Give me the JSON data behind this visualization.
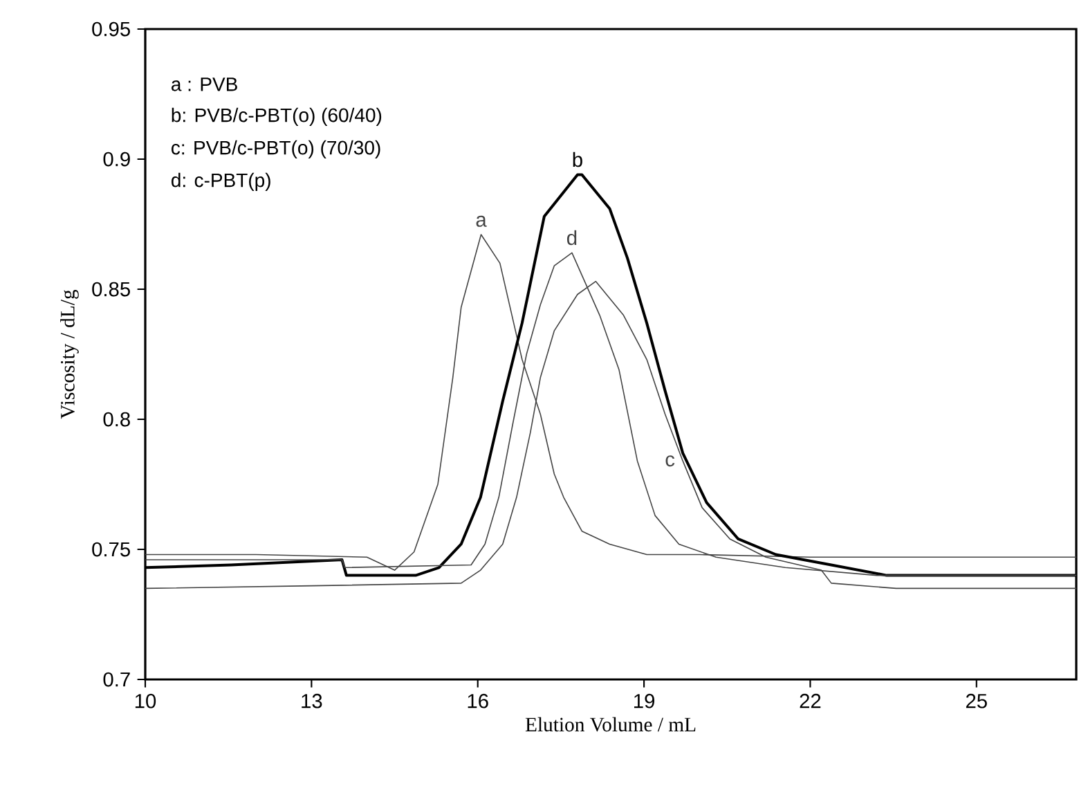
{
  "chart_data": {
    "type": "line",
    "xlabel": "Elution Volume / mL",
    "ylabel": "Viscosity / dL/g",
    "xlim": [
      10,
      26.8
    ],
    "xticks": [
      10,
      13,
      16,
      19,
      22,
      25
    ],
    "ylim": [
      0.7,
      0.95
    ],
    "yticks": [
      0.7,
      0.75,
      0.8,
      0.85,
      0.9,
      0.95
    ],
    "grid": false,
    "marker": "none",
    "line_style": "solid",
    "annotations": [
      "a : PVB",
      "b:  PVB/c-PBT(o) (60/40)",
      "c:  PVB/c-PBT(o) (70/30)",
      "d:  c-PBT(p)"
    ],
    "series": [
      {
        "name": "a",
        "color": "#444444",
        "x": [
          10,
          12,
          14,
          14.5,
          14.85,
          15.28,
          15.55,
          15.7,
          16.06,
          16.4,
          16.8,
          17.13,
          17.38,
          17.55,
          17.88,
          18.38,
          19.05,
          20,
          22,
          24,
          26.8
        ],
        "values": [
          0.748,
          0.748,
          0.747,
          0.742,
          0.749,
          0.775,
          0.816,
          0.843,
          0.871,
          0.86,
          0.823,
          0.802,
          0.779,
          0.77,
          0.757,
          0.752,
          0.748,
          0.748,
          0.747,
          0.747,
          0.747
        ]
      },
      {
        "name": "b",
        "color": "#000000",
        "x": [
          10,
          11.55,
          13.55,
          13.63,
          14.88,
          15.3,
          15.7,
          16.05,
          16.45,
          16.8,
          17.2,
          17.8,
          17.88,
          18.38,
          18.7,
          19.05,
          19.38,
          19.7,
          20.13,
          20.7,
          21.38,
          22.38,
          23.38,
          26.8
        ],
        "values": [
          0.743,
          0.744,
          0.746,
          0.74,
          0.74,
          0.743,
          0.752,
          0.77,
          0.807,
          0.837,
          0.878,
          0.894,
          0.894,
          0.881,
          0.862,
          0.837,
          0.811,
          0.787,
          0.768,
          0.754,
          0.748,
          0.744,
          0.74,
          0.74
        ]
      },
      {
        "name": "c",
        "color": "#444444",
        "x": [
          10,
          13,
          15.7,
          16.05,
          16.45,
          16.7,
          16.95,
          17.13,
          17.38,
          17.8,
          18.13,
          18.63,
          19.05,
          19.38,
          19.7,
          20.05,
          20.55,
          21.2,
          22.2,
          22.38,
          23.55,
          26.8
        ],
        "values": [
          0.735,
          0.736,
          0.737,
          0.742,
          0.752,
          0.77,
          0.795,
          0.816,
          0.834,
          0.848,
          0.853,
          0.84,
          0.823,
          0.802,
          0.784,
          0.766,
          0.754,
          0.747,
          0.742,
          0.737,
          0.735,
          0.735
        ]
      },
      {
        "name": "d",
        "color": "#444444",
        "x": [
          10,
          13.55,
          13.6,
          15.88,
          16.13,
          16.38,
          16.63,
          16.88,
          17.13,
          17.38,
          17.7,
          18.2,
          18.55,
          18.88,
          19.2,
          19.63,
          20.3,
          21.55,
          23.2,
          26.8
        ],
        "values": [
          0.746,
          0.746,
          0.743,
          0.744,
          0.752,
          0.77,
          0.798,
          0.825,
          0.844,
          0.859,
          0.864,
          0.84,
          0.819,
          0.784,
          0.763,
          0.752,
          0.747,
          0.743,
          0.74,
          0.74
        ]
      }
    ]
  }
}
